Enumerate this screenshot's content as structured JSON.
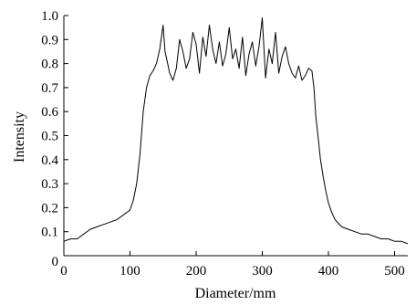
{
  "chart_data": {
    "type": "line",
    "title": "",
    "xlabel": "Diameter/mm",
    "ylabel": "Intensity",
    "xlim": [
      0,
      520
    ],
    "ylim": [
      0,
      1.0
    ],
    "x_ticks": [
      0,
      100,
      200,
      300,
      400,
      500
    ],
    "x_tick_labels": [
      "0",
      "100",
      "200",
      "300",
      "400",
      "500"
    ],
    "y_ticks": [
      0,
      0.1,
      0.2,
      0.3,
      0.4,
      0.5,
      0.6,
      0.7,
      0.8,
      0.9,
      1.0
    ],
    "y_tick_labels": [
      "0",
      "0.1",
      "0.2",
      "0.3",
      "0.4",
      "0.5",
      "0.6",
      "0.7",
      "0.8",
      "0.9",
      "1.0"
    ],
    "grid": false,
    "legend": "none",
    "line_color": "#000000",
    "series": [
      {
        "x": [
          0,
          10,
          20,
          30,
          40,
          50,
          60,
          70,
          80,
          90,
          100,
          105,
          110,
          115,
          120,
          125,
          130,
          135,
          140,
          145,
          150,
          153,
          157,
          160,
          165,
          170,
          175,
          180,
          185,
          190,
          195,
          200,
          205,
          210,
          215,
          220,
          225,
          230,
          235,
          240,
          245,
          250,
          255,
          260,
          265,
          270,
          275,
          280,
          285,
          290,
          295,
          300,
          305,
          310,
          315,
          320,
          325,
          330,
          335,
          340,
          345,
          350,
          355,
          360,
          365,
          370,
          375,
          378,
          381,
          385,
          388,
          392,
          396,
          400,
          405,
          410,
          420,
          430,
          440,
          450,
          460,
          470,
          480,
          490,
          500,
          510,
          520
        ],
        "y": [
          0.06,
          0.07,
          0.07,
          0.09,
          0.11,
          0.12,
          0.13,
          0.14,
          0.15,
          0.17,
          0.19,
          0.23,
          0.3,
          0.42,
          0.6,
          0.7,
          0.75,
          0.77,
          0.8,
          0.86,
          0.96,
          0.85,
          0.8,
          0.76,
          0.73,
          0.78,
          0.9,
          0.85,
          0.78,
          0.82,
          0.93,
          0.88,
          0.76,
          0.91,
          0.83,
          0.96,
          0.86,
          0.8,
          0.89,
          0.79,
          0.84,
          0.95,
          0.82,
          0.86,
          0.78,
          0.91,
          0.75,
          0.84,
          0.89,
          0.79,
          0.87,
          0.99,
          0.74,
          0.86,
          0.8,
          0.93,
          0.76,
          0.83,
          0.87,
          0.8,
          0.76,
          0.74,
          0.79,
          0.73,
          0.75,
          0.78,
          0.77,
          0.7,
          0.58,
          0.48,
          0.4,
          0.33,
          0.27,
          0.22,
          0.18,
          0.15,
          0.12,
          0.11,
          0.1,
          0.09,
          0.09,
          0.08,
          0.07,
          0.07,
          0.06,
          0.06,
          0.05
        ]
      }
    ]
  }
}
